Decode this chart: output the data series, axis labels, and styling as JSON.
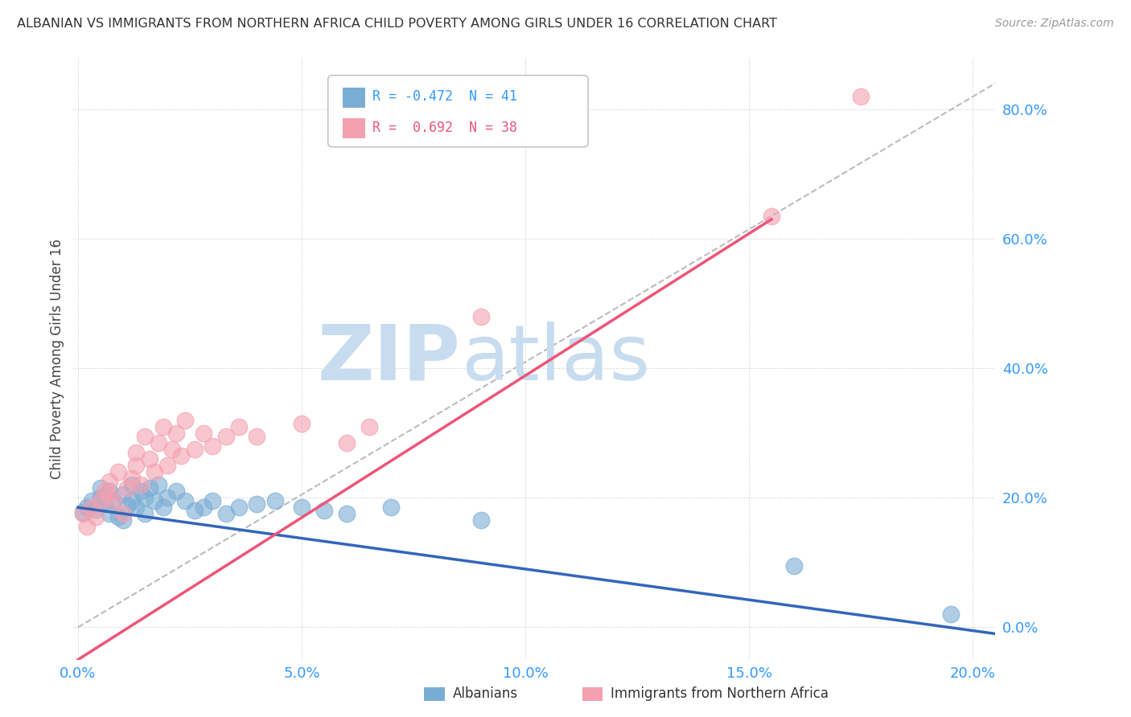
{
  "title": "ALBANIAN VS IMMIGRANTS FROM NORTHERN AFRICA CHILD POVERTY AMONG GIRLS UNDER 16 CORRELATION CHART",
  "source": "Source: ZipAtlas.com",
  "ylabel": "Child Poverty Among Girls Under 16",
  "xlim": [
    -0.001,
    0.205
  ],
  "ylim": [
    -0.05,
    0.88
  ],
  "xticks": [
    0.0,
    0.05,
    0.1,
    0.15,
    0.2
  ],
  "yticks": [
    0.0,
    0.2,
    0.4,
    0.6,
    0.8
  ],
  "legend_r1": "R = -0.472  N = 41",
  "legend_r2": "R =  0.692  N = 38",
  "legend_label1": "Albanians",
  "legend_label2": "Immigrants from Northern Africa",
  "color_blue": "#7AADD4",
  "color_pink": "#F4A0B0",
  "color_trendline_blue": "#3366BB",
  "color_trendline_pink": "#EE5577",
  "watermark_color": "#C8DCF0",
  "blue_scatter_x": [
    0.001,
    0.002,
    0.003,
    0.004,
    0.005,
    0.005,
    0.006,
    0.007,
    0.007,
    0.008,
    0.009,
    0.01,
    0.01,
    0.011,
    0.012,
    0.012,
    0.013,
    0.014,
    0.015,
    0.015,
    0.016,
    0.017,
    0.018,
    0.019,
    0.02,
    0.022,
    0.024,
    0.026,
    0.028,
    0.03,
    0.033,
    0.036,
    0.04,
    0.044,
    0.05,
    0.055,
    0.06,
    0.07,
    0.09,
    0.16,
    0.195
  ],
  "blue_scatter_y": [
    0.178,
    0.185,
    0.195,
    0.182,
    0.2,
    0.215,
    0.19,
    0.175,
    0.21,
    0.195,
    0.17,
    0.165,
    0.205,
    0.188,
    0.195,
    0.22,
    0.185,
    0.21,
    0.2,
    0.175,
    0.215,
    0.195,
    0.22,
    0.185,
    0.2,
    0.21,
    0.195,
    0.18,
    0.185,
    0.195,
    0.175,
    0.185,
    0.19,
    0.195,
    0.185,
    0.18,
    0.175,
    0.185,
    0.165,
    0.095,
    0.02
  ],
  "pink_scatter_x": [
    0.001,
    0.002,
    0.003,
    0.004,
    0.005,
    0.006,
    0.007,
    0.007,
    0.008,
    0.009,
    0.01,
    0.011,
    0.012,
    0.013,
    0.013,
    0.014,
    0.015,
    0.016,
    0.017,
    0.018,
    0.019,
    0.02,
    0.021,
    0.022,
    0.023,
    0.024,
    0.026,
    0.028,
    0.03,
    0.033,
    0.036,
    0.04,
    0.05,
    0.06,
    0.065,
    0.09,
    0.155,
    0.175
  ],
  "pink_scatter_y": [
    0.175,
    0.155,
    0.185,
    0.17,
    0.195,
    0.21,
    0.205,
    0.225,
    0.195,
    0.24,
    0.175,
    0.215,
    0.23,
    0.25,
    0.27,
    0.22,
    0.295,
    0.26,
    0.24,
    0.285,
    0.31,
    0.25,
    0.275,
    0.3,
    0.265,
    0.32,
    0.275,
    0.3,
    0.28,
    0.295,
    0.31,
    0.295,
    0.315,
    0.285,
    0.31,
    0.48,
    0.635,
    0.82
  ]
}
